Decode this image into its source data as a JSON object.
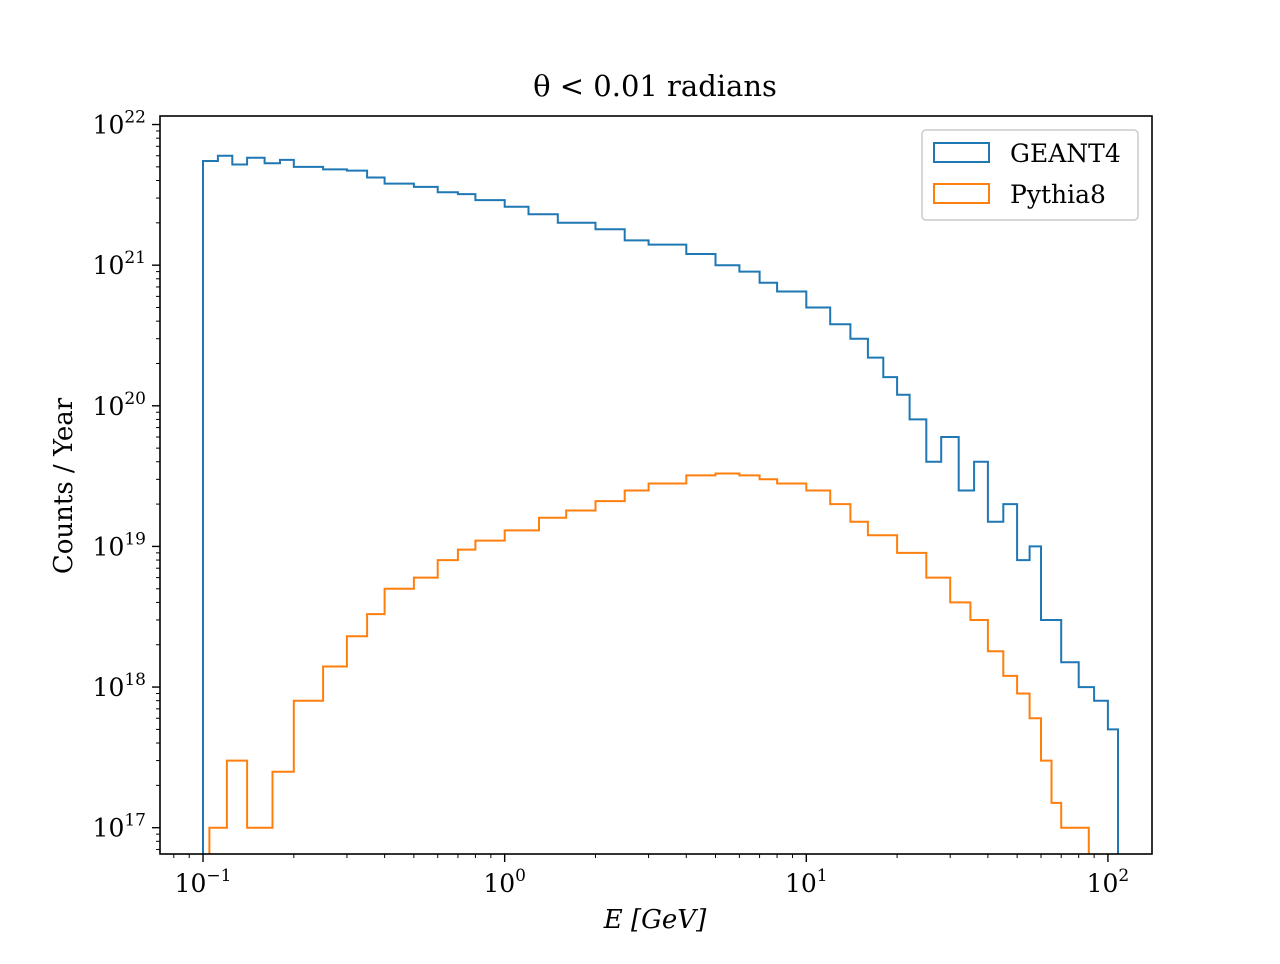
{
  "chart_data": {
    "type": "histogram-step",
    "title": "θ < 0.01 radians",
    "xlabel": "E [GeV]",
    "ylabel": "Counts / Year",
    "x_scale": "log",
    "y_scale": "log",
    "xlim": [
      0.072,
      140
    ],
    "ylim": [
      6.5e+16,
      1.15e+22
    ],
    "x_ticks": [
      {
        "value": 0.1,
        "label": "10",
        "exp": "−1"
      },
      {
        "value": 1,
        "label": "10",
        "exp": "0"
      },
      {
        "value": 10,
        "label": "10",
        "exp": "1"
      },
      {
        "value": 100,
        "label": "10",
        "exp": "2"
      }
    ],
    "y_ticks": [
      {
        "value": 1e+17,
        "label": "10",
        "exp": "17"
      },
      {
        "value": 1e+18,
        "label": "10",
        "exp": "18"
      },
      {
        "value": 1e+19,
        "label": "10",
        "exp": "19"
      },
      {
        "value": 1e+20,
        "label": "10",
        "exp": "20"
      },
      {
        "value": 1e+21,
        "label": "10",
        "exp": "21"
      },
      {
        "value": 1e+22,
        "label": "10",
        "exp": "22"
      }
    ],
    "grid": false,
    "legend_position": "top-right",
    "series": [
      {
        "name": "GEANT4",
        "color": "#1f77b4",
        "points": [
          [
            0.1,
            5.5e+21
          ],
          [
            0.112,
            6e+21
          ],
          [
            0.125,
            5.2e+21
          ],
          [
            0.14,
            5.8e+21
          ],
          [
            0.16,
            5.3e+21
          ],
          [
            0.18,
            5.6e+21
          ],
          [
            0.2,
            5e+21
          ],
          [
            0.25,
            4.8e+21
          ],
          [
            0.3,
            4.7e+21
          ],
          [
            0.35,
            4.2e+21
          ],
          [
            0.4,
            3.8e+21
          ],
          [
            0.5,
            3.6e+21
          ],
          [
            0.6,
            3.3e+21
          ],
          [
            0.7,
            3.2e+21
          ],
          [
            0.8,
            2.9e+21
          ],
          [
            1.0,
            2.6e+21
          ],
          [
            1.2,
            2.3e+21
          ],
          [
            1.5,
            2e+21
          ],
          [
            2.0,
            1.8e+21
          ],
          [
            2.5,
            1.5e+21
          ],
          [
            3.0,
            1.4e+21
          ],
          [
            4.0,
            1.2e+21
          ],
          [
            5.0,
            1e+21
          ],
          [
            6.0,
            9e+20
          ],
          [
            7.0,
            7.5e+20
          ],
          [
            8.0,
            6.5e+20
          ],
          [
            10.0,
            5e+20
          ],
          [
            12.0,
            3.8e+20
          ],
          [
            14.0,
            3e+20
          ],
          [
            16.0,
            2.2e+20
          ],
          [
            18.0,
            1.6e+20
          ],
          [
            20.0,
            1.2e+20
          ],
          [
            22.0,
            8e+19
          ],
          [
            25.0,
            4e+19
          ],
          [
            28.0,
            6e+19
          ],
          [
            32.0,
            2.5e+19
          ],
          [
            36.0,
            4e+19
          ],
          [
            40.0,
            1.5e+19
          ],
          [
            45.0,
            2e+19
          ],
          [
            50.0,
            8e+18
          ],
          [
            55.0,
            1e+19
          ],
          [
            60.0,
            3e+18
          ],
          [
            70.0,
            1.5e+18
          ],
          [
            80.0,
            1e+18
          ],
          [
            90.0,
            8e+17
          ],
          [
            100.0,
            5e+17
          ]
        ]
      },
      {
        "name": "Pythia8",
        "color": "#ff7f0e",
        "points": [
          [
            0.105,
            1e+17
          ],
          [
            0.12,
            3e+17
          ],
          [
            0.14,
            1e+17
          ],
          [
            0.17,
            2.5e+17
          ],
          [
            0.2,
            8e+17
          ],
          [
            0.25,
            1.4e+18
          ],
          [
            0.3,
            2.3e+18
          ],
          [
            0.35,
            3.3e+18
          ],
          [
            0.4,
            5e+18
          ],
          [
            0.5,
            6e+18
          ],
          [
            0.6,
            8e+18
          ],
          [
            0.7,
            9.5e+18
          ],
          [
            0.8,
            1.1e+19
          ],
          [
            1.0,
            1.3e+19
          ],
          [
            1.3,
            1.6e+19
          ],
          [
            1.6,
            1.8e+19
          ],
          [
            2.0,
            2.1e+19
          ],
          [
            2.5,
            2.5e+19
          ],
          [
            3.0,
            2.8e+19
          ],
          [
            4.0,
            3.2e+19
          ],
          [
            5.0,
            3.3e+19
          ],
          [
            6.0,
            3.2e+19
          ],
          [
            7.0,
            3e+19
          ],
          [
            8.0,
            2.8e+19
          ],
          [
            10.0,
            2.5e+19
          ],
          [
            12.0,
            2e+19
          ],
          [
            14.0,
            1.5e+19
          ],
          [
            16.0,
            1.2e+19
          ],
          [
            20.0,
            9e+18
          ],
          [
            25.0,
            6e+18
          ],
          [
            30.0,
            4e+18
          ],
          [
            35.0,
            3e+18
          ],
          [
            40.0,
            1.8e+18
          ],
          [
            45.0,
            1.2e+18
          ],
          [
            50.0,
            9e+17
          ],
          [
            55.0,
            6e+17
          ],
          [
            60.0,
            3e+17
          ],
          [
            65.0,
            1.5e+17
          ],
          [
            70.0,
            1e+17
          ],
          [
            80.0,
            1e+17
          ]
        ]
      }
    ]
  }
}
